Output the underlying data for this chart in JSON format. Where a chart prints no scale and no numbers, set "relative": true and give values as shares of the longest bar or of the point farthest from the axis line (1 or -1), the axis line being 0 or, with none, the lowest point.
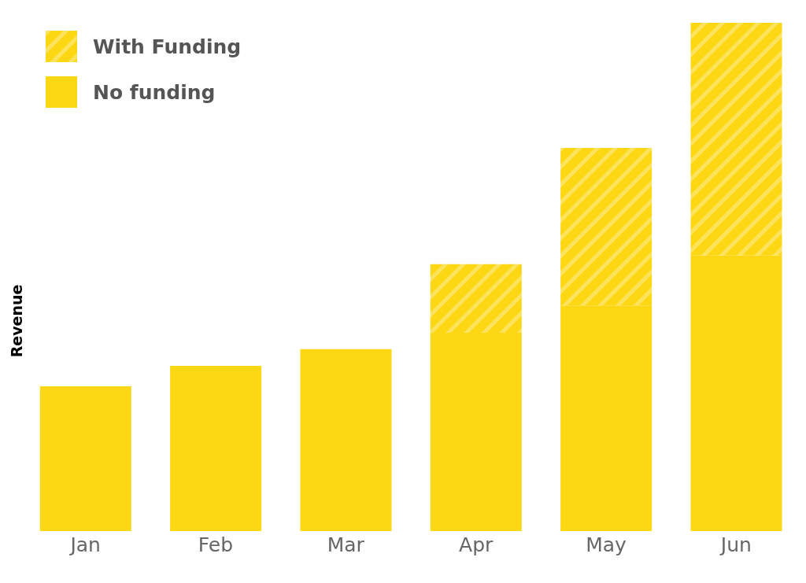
{
  "chart_data": {
    "type": "bar",
    "stacked": true,
    "relative": true,
    "ylabel": "Revenue",
    "legend": "top left",
    "grid": false,
    "categories": [
      "Jan",
      "Feb",
      "Mar",
      "Apr",
      "May",
      "Jun"
    ],
    "series": [
      {
        "name": "No funding",
        "color": "#fdd614",
        "values": [
          0.285,
          0.325,
          0.358,
          0.39,
          0.444,
          0.542
        ]
      },
      {
        "name": "With Funding",
        "color": "#fde35c",
        "values": [
          null,
          null,
          null,
          0.135,
          0.31,
          0.458
        ]
      }
    ]
  }
}
